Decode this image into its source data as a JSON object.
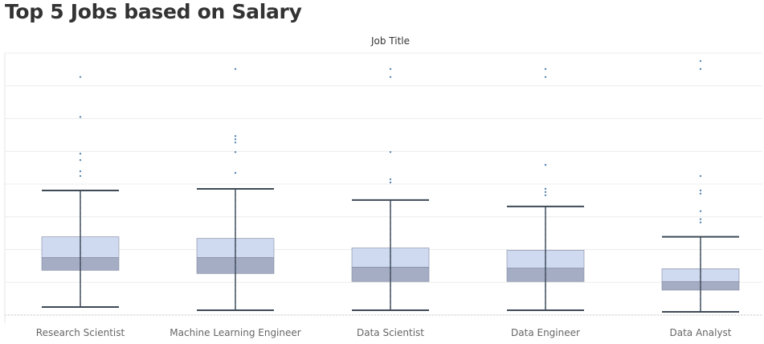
{
  "title": "Top 5 Jobs based on Salary",
  "chart_data": {
    "type": "boxplot",
    "header": "Job Title",
    "grid": true,
    "y_axis_labels_shown": false,
    "colors": {
      "upper_box": "#cfd9ef",
      "lower_box": "#a5adc4",
      "whisker": "#3e4a56",
      "points": "#5a87b3",
      "gridline": "#ececec"
    },
    "categories": [
      "Research Scientist",
      "Machine Learning Engineer",
      "Data Scientist",
      "Data Engineer",
      "Data Analyst"
    ],
    "boxes": [
      {
        "category": "Research Scientist",
        "whisker_low": 0.02,
        "q1": 0.135,
        "median": 0.175,
        "q3": 0.24,
        "whisker_high": 0.385,
        "outliers": [
          0.74,
          0.615,
          0.5,
          0.48,
          0.445,
          0.43
        ]
      },
      {
        "category": "Machine Learning Engineer",
        "whisker_low": 0.01,
        "q1": 0.125,
        "median": 0.175,
        "q3": 0.235,
        "whisker_high": 0.39,
        "outliers": [
          0.765,
          0.555,
          0.545,
          0.535,
          0.505,
          0.44
        ]
      },
      {
        "category": "Data Scientist",
        "whisker_low": 0.01,
        "q1": 0.1,
        "median": 0.145,
        "q3": 0.205,
        "whisker_high": 0.355,
        "outliers": [
          0.765,
          0.74,
          0.505,
          0.42,
          0.41
        ]
      },
      {
        "category": "Data Engineer",
        "whisker_low": 0.01,
        "q1": 0.1,
        "median": 0.142,
        "q3": 0.198,
        "whisker_high": 0.335,
        "outliers": [
          0.765,
          0.74,
          0.465,
          0.39,
          0.38,
          0.37
        ]
      },
      {
        "category": "Data Analyst",
        "whisker_low": 0.005,
        "q1": 0.073,
        "median": 0.1,
        "q3": 0.14,
        "whisker_high": 0.24,
        "outliers": [
          0.79,
          0.765,
          0.43,
          0.385,
          0.375,
          0.32,
          0.295,
          0.285
        ]
      }
    ]
  }
}
